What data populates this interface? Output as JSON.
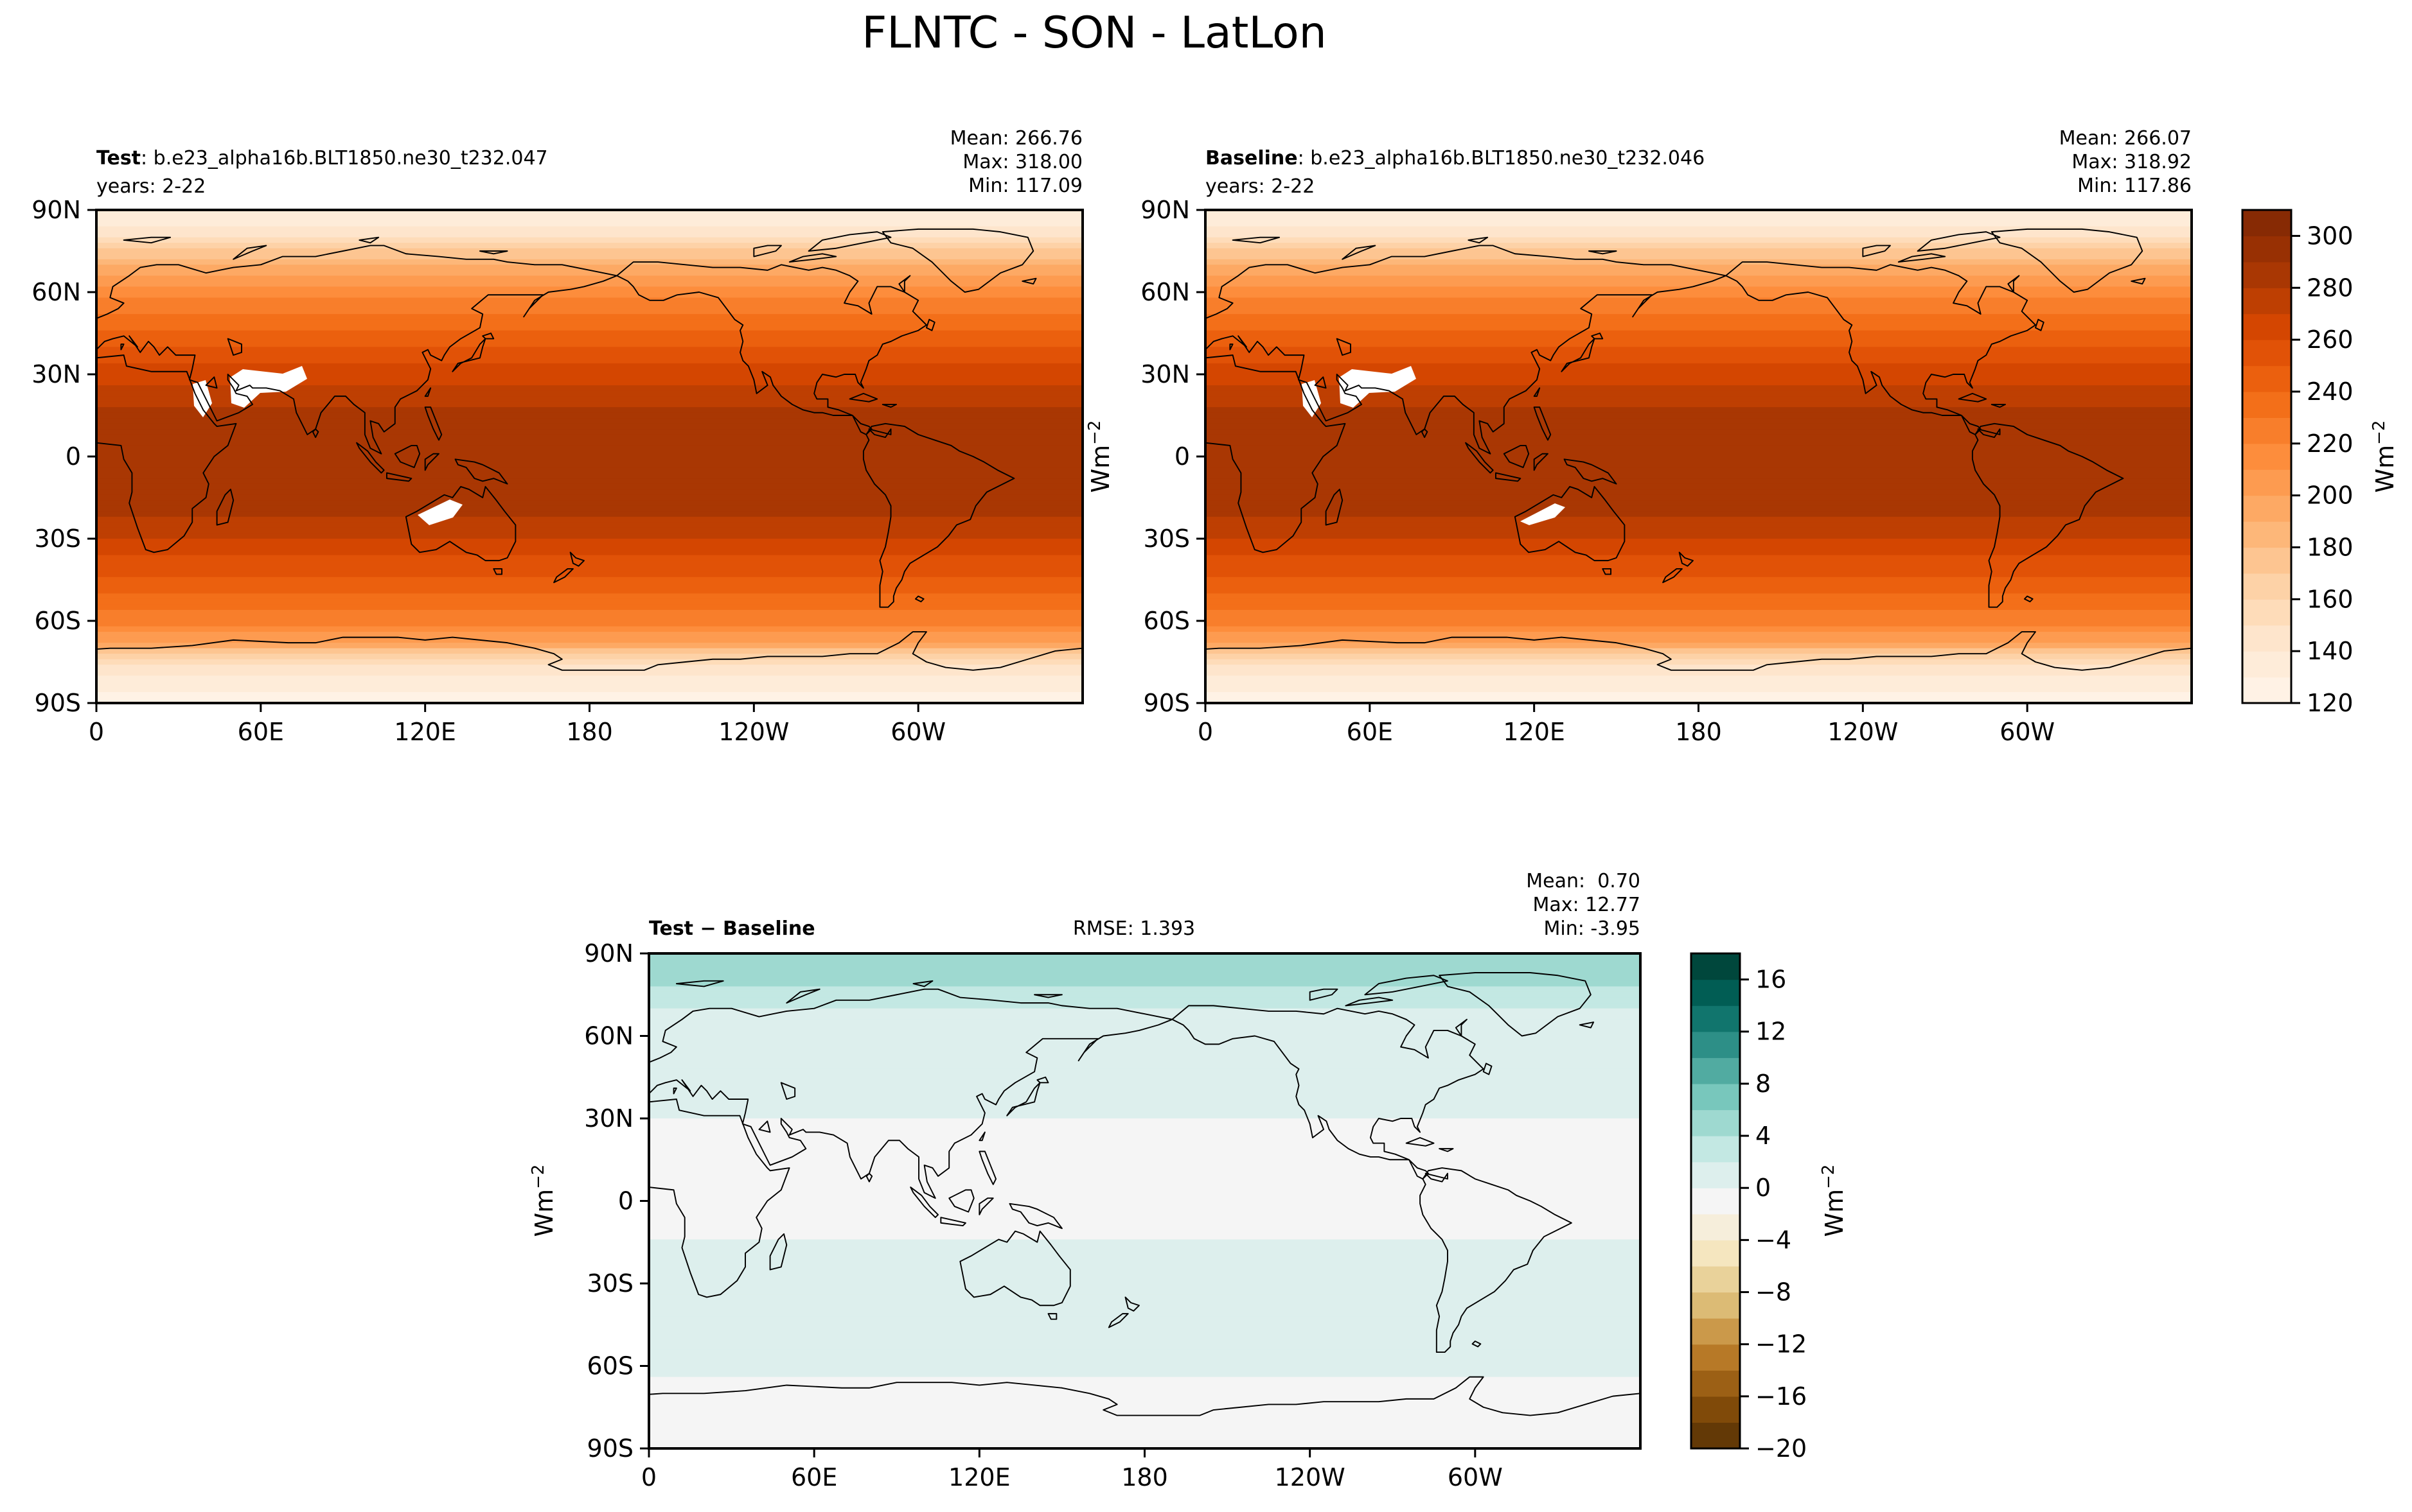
{
  "figure": {
    "title": "FLNTC - SON - LatLon"
  },
  "chart_data": [
    {
      "type": "heatmap",
      "panel": "test",
      "label_bold": "Test",
      "label_rest": ": b.e23_alpha16b.BLT1850.ne30_t232.047",
      "years": "years: 2-22",
      "stats": [
        "Mean: 266.76",
        "Max: 318.00",
        "Min: 117.09"
      ],
      "lat_ticks": [
        "90N",
        "60N",
        "30N",
        "0",
        "30S",
        "60S",
        "90S"
      ],
      "lon_ticks": [
        "0",
        "60E",
        "120E",
        "180",
        "120W",
        "60W"
      ],
      "xlim": [
        0,
        360
      ],
      "ylim": [
        -90,
        90
      ],
      "colormap": "oranges",
      "bands": [
        {
          "lat": 90,
          "value": 128
        },
        {
          "lat": 80,
          "value": 150
        },
        {
          "lat": 70,
          "value": 190
        },
        {
          "lat": 60,
          "value": 215
        },
        {
          "lat": 45,
          "value": 240
        },
        {
          "lat": 30,
          "value": 265
        },
        {
          "lat": 15,
          "value": 285
        },
        {
          "lat": 0,
          "value": 282
        },
        {
          "lat": -15,
          "value": 288
        },
        {
          "lat": -30,
          "value": 270
        },
        {
          "lat": -45,
          "value": 248
        },
        {
          "lat": -60,
          "value": 225
        },
        {
          "lat": -68,
          "value": 200
        },
        {
          "lat": -75,
          "value": 150
        },
        {
          "lat": -90,
          "value": 122
        }
      ]
    },
    {
      "type": "heatmap",
      "panel": "baseline",
      "label_bold": "Baseline",
      "label_rest": ": b.e23_alpha16b.BLT1850.ne30_t232.046",
      "years": "years: 2-22",
      "stats": [
        "Mean: 266.07",
        "Max: 318.92",
        "Min: 117.86"
      ],
      "lat_ticks": [
        "90N",
        "60N",
        "30N",
        "0",
        "30S",
        "60S",
        "90S"
      ],
      "lon_ticks": [
        "0",
        "60E",
        "120E",
        "180",
        "120W",
        "60W"
      ],
      "xlim": [
        0,
        360
      ],
      "ylim": [
        -90,
        90
      ],
      "colormap": "oranges",
      "colorbar": {
        "ticks": [
          "300",
          "280",
          "260",
          "240",
          "220",
          "200",
          "180",
          "160",
          "140",
          "120"
        ],
        "range": [
          120,
          310
        ],
        "label": "Wm",
        "label_sup": "−2"
      },
      "bands": [
        {
          "lat": 90,
          "value": 128
        },
        {
          "lat": 80,
          "value": 150
        },
        {
          "lat": 70,
          "value": 190
        },
        {
          "lat": 60,
          "value": 215
        },
        {
          "lat": 45,
          "value": 240
        },
        {
          "lat": 30,
          "value": 265
        },
        {
          "lat": 15,
          "value": 285
        },
        {
          "lat": 0,
          "value": 282
        },
        {
          "lat": -15,
          "value": 288
        },
        {
          "lat": -30,
          "value": 270
        },
        {
          "lat": -45,
          "value": 248
        },
        {
          "lat": -60,
          "value": 225
        },
        {
          "lat": -68,
          "value": 200
        },
        {
          "lat": -75,
          "value": 150
        },
        {
          "lat": -90,
          "value": 122
        }
      ]
    },
    {
      "type": "heatmap",
      "panel": "diff",
      "label_bold": "Test − Baseline",
      "rmse": "RMSE: 1.393",
      "stats": [
        "Mean:  0.70",
        "Max: 12.77",
        "Min: -3.95"
      ],
      "ylabel": "Wm",
      "ylabel_sup": "−2",
      "lat_ticks": [
        "90N",
        "60N",
        "30N",
        "0",
        "30S",
        "60S",
        "90S"
      ],
      "lon_ticks": [
        "0",
        "60E",
        "120E",
        "180",
        "120W",
        "60W"
      ],
      "xlim": [
        0,
        360
      ],
      "ylim": [
        -90,
        90
      ],
      "colormap": "brbg",
      "colorbar": {
        "ticks": [
          "16",
          "12",
          "8",
          "4",
          "0",
          "−4",
          "−8",
          "−12",
          "−16",
          "−20"
        ],
        "range": [
          -20,
          18
        ],
        "label": "Wm",
        "label_sup": "−2"
      },
      "bands": [
        {
          "lat": 90,
          "value": 5
        },
        {
          "lat": 78,
          "value": 4
        },
        {
          "lat": 70,
          "value": 2
        },
        {
          "lat": 60,
          "value": 1
        },
        {
          "lat": 40,
          "value": 0.5
        },
        {
          "lat": 20,
          "value": -0.5
        },
        {
          "lat": 0,
          "value": -1
        },
        {
          "lat": -20,
          "value": 0.5
        },
        {
          "lat": -40,
          "value": 1
        },
        {
          "lat": -60,
          "value": 0.5
        },
        {
          "lat": -72,
          "value": -1
        },
        {
          "lat": -90,
          "value": -1.5
        }
      ]
    }
  ],
  "colors": {
    "oranges": [
      "#fff5eb",
      "#fee6ce",
      "#fdd0a2",
      "#fdae6b",
      "#fd8d3c",
      "#f16913",
      "#d94801",
      "#a63603",
      "#7f2704"
    ],
    "brbg": [
      "#543005",
      "#8c510a",
      "#bf812d",
      "#dfc27d",
      "#f6e8c3",
      "#f5f5f5",
      "#c7eae5",
      "#80cdc1",
      "#35978f",
      "#01665e",
      "#003c30"
    ],
    "coastline": "#000000",
    "masked": "#ffffff"
  }
}
